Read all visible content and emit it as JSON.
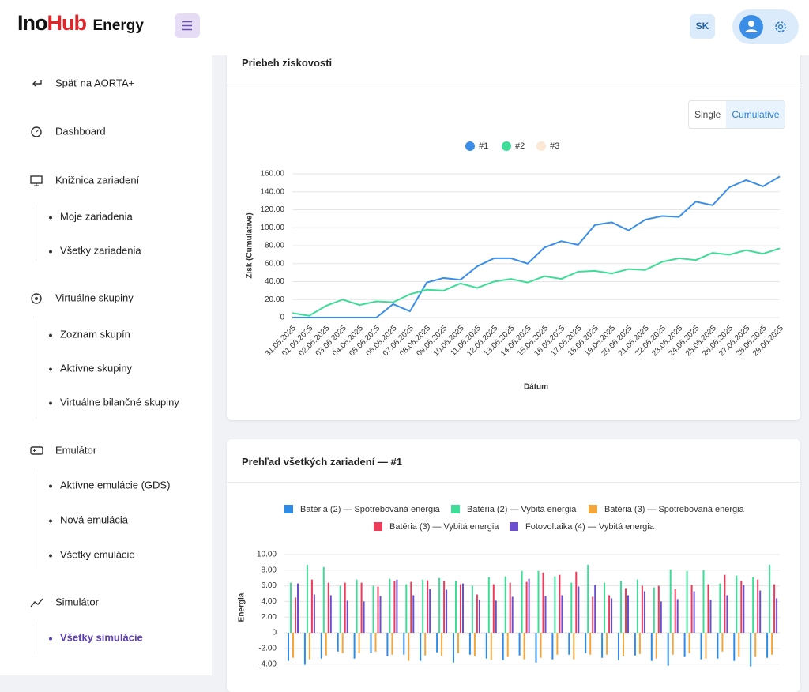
{
  "header": {
    "logo_part1": "Ino",
    "logo_part2": "Hub",
    "logo_suffix": "Energy",
    "language": "SK"
  },
  "sidebar": {
    "items": [
      {
        "label": "Späť na AORTA+"
      },
      {
        "label": "Dashboard"
      },
      {
        "label": "Knižnica zariadení",
        "children": [
          "Moje zariadenia",
          "Všetky zariadenia"
        ]
      },
      {
        "label": "Virtuálne skupiny",
        "children": [
          "Zoznam skupín",
          "Aktívne skupiny",
          "Virtuálne bilančné skupiny"
        ]
      },
      {
        "label": "Emulátor",
        "children": [
          "Aktívne emulácie (GDS)",
          "Nová emulácia",
          "Všetky emulácie"
        ]
      },
      {
        "label": "Simulátor",
        "children": [
          "Všetky simulácie"
        ]
      }
    ]
  },
  "chart_data": [
    {
      "type": "line",
      "title": "Priebeh ziskovosti",
      "toggle": [
        "Single",
        "Cumulative"
      ],
      "toggle_active": 1,
      "x_label": "Dátum",
      "y_label": "Zisk (Cumulative)",
      "grid": true,
      "categories": [
        "31.05.2025",
        "01.06.2025",
        "02.06.2025",
        "03.06.2025",
        "04.06.2025",
        "05.06.2025",
        "06.06.2025",
        "07.06.2025",
        "08.06.2025",
        "09.06.2025",
        "10.06.2025",
        "11.06.2025",
        "12.06.2025",
        "13.06.2025",
        "14.06.2025",
        "15.06.2025",
        "16.06.2025",
        "17.06.2025",
        "18.06.2025",
        "19.06.2025",
        "20.06.2025",
        "21.06.2025",
        "22.06.2025",
        "23.06.2025",
        "24.06.2025",
        "25.06.2025",
        "26.06.2025",
        "27.06.2025",
        "28.06.2025",
        "29.06.2025"
      ],
      "series": [
        {
          "name": "#1",
          "color": "#3b8ee8",
          "values": [
            0,
            0,
            0,
            0,
            0,
            0,
            15,
            7,
            39,
            44,
            42,
            57,
            66,
            66,
            60,
            78,
            85,
            81,
            103,
            106,
            97,
            109,
            113,
            112,
            129,
            125,
            145,
            153,
            146,
            157
          ]
        },
        {
          "name": "#2",
          "color": "#3ddc97",
          "values": [
            5,
            2,
            13,
            20,
            14,
            18,
            17,
            26,
            31,
            30,
            38,
            33,
            40,
            43,
            39,
            46,
            43,
            51,
            52,
            49,
            54,
            53,
            62,
            66,
            64,
            72,
            70,
            75,
            71,
            77
          ]
        },
        {
          "name": "#3",
          "color": "#f7a35c",
          "hidden": true,
          "values": [
            null,
            null,
            null,
            null,
            null,
            null,
            null,
            null,
            null,
            null,
            null,
            null,
            null,
            null,
            null,
            null,
            null,
            null,
            null,
            null,
            null,
            null,
            null,
            null,
            null,
            null,
            null,
            null,
            null,
            null
          ]
        }
      ],
      "ylim": [
        0,
        160
      ],
      "yticks": [
        0,
        {
          "value": 20,
          "label": "20.00"
        },
        {
          "value": 40,
          "label": "40.00"
        },
        {
          "value": 60,
          "label": "60.00"
        },
        {
          "value": 80,
          "label": "80.00"
        },
        {
          "value": 100,
          "label": "100.00"
        },
        {
          "value": 120,
          "label": "120.00"
        },
        {
          "value": 140,
          "label": "140.00"
        },
        {
          "value": 160,
          "label": "160.00"
        }
      ]
    },
    {
      "type": "bar",
      "title": "Prehľad všetkých zariadení — #1",
      "y_label": "Energia",
      "grid": true,
      "categories": [
        null,
        null,
        null,
        null,
        null,
        null,
        null,
        null,
        null,
        null,
        null,
        null,
        null,
        null,
        null,
        null,
        null,
        null,
        null,
        null,
        null,
        null,
        null,
        null,
        null,
        null,
        null,
        null,
        null,
        null
      ],
      "series": [
        {
          "name": "Batéria (2) — Spotrebovaná energia",
          "color": "#2f8be6",
          "values": [
            -3.6,
            -4.1,
            -3.3,
            -2.4,
            -3.3,
            -2.6,
            -3.0,
            -2.8,
            -3.6,
            -2.5,
            -3.8,
            -2.8,
            -3.3,
            -3.5,
            -2.9,
            -3.8,
            -3.4,
            -2.8,
            -2.6,
            -3.2,
            -3.5,
            -2.9,
            -3.6,
            -4.2,
            -3.1,
            -3.4,
            -3.3,
            -3.6,
            -4.3,
            -3.2
          ]
        },
        {
          "name": "Batéria (2) — Vybitá energia",
          "color": "#3ddc97",
          "values": [
            6.4,
            8.7,
            8.4,
            6.0,
            6.8,
            6.0,
            6.9,
            6.2,
            6.8,
            7.0,
            6.6,
            6.0,
            7.1,
            7.2,
            7.9,
            7.9,
            7.2,
            6.4,
            8.7,
            6.4,
            6.6,
            6.8,
            5.8,
            8.1,
            7.9,
            8.0,
            6.3,
            7.3,
            7.1,
            8.7
          ]
        },
        {
          "name": "Batéria (3) — Spotrebovaná energia",
          "color": "#f5a63b",
          "values": [
            -3.2,
            -3.4,
            -2.9,
            -2.6,
            -2.6,
            -2.4,
            -2.8,
            -3.6,
            -2.9,
            -3.0,
            -2.6,
            -3.0,
            -3.5,
            -3.1,
            -3.4,
            -3.2,
            -2.8,
            -3.4,
            -2.8,
            -2.8,
            -3.0,
            -2.7,
            -3.3,
            -2.8,
            -2.6,
            -3.3,
            -2.4,
            -3.1,
            -3.1,
            -2.8
          ]
        },
        {
          "name": "Batéria (3) — Vybitá energia",
          "color": "#ee3a5b",
          "values": [
            4.5,
            6.8,
            6.4,
            6.4,
            6.4,
            5.9,
            6.6,
            6.5,
            6.7,
            6.6,
            6.2,
            4.9,
            6.2,
            6.4,
            6.5,
            7.7,
            7.4,
            7.8,
            4.6,
            4.8,
            5.7,
            6.0,
            6.0,
            5.6,
            6.1,
            6.2,
            7.4,
            6.6,
            6.8,
            6.2
          ]
        },
        {
          "name": "Fotovoltaika (4) — Vybitá energia",
          "color": "#6c4fd0",
          "values": [
            6.3,
            4.9,
            4.8,
            4.1,
            4.0,
            4.7,
            6.8,
            4.8,
            5.6,
            5.5,
            6.3,
            4.2,
            4.1,
            4.6,
            6.9,
            4.7,
            4.8,
            5.9,
            6.1,
            4.4,
            4.8,
            5.3,
            4.0,
            4.3,
            5.3,
            4.2,
            4.8,
            6.1,
            5.4,
            4.4
          ]
        }
      ],
      "ylim": [
        -5.4,
        10.4
      ],
      "yticks": [
        {
          "value": -4,
          "label": "-4.00"
        },
        {
          "value": -2,
          "label": "-2.00"
        },
        0,
        {
          "value": 2,
          "label": "2.00"
        },
        {
          "value": 4,
          "label": "4.00"
        },
        {
          "value": 6,
          "label": "6.00"
        },
        {
          "value": 8,
          "label": "8.00"
        },
        {
          "value": 10,
          "label": "10.00"
        }
      ]
    }
  ]
}
